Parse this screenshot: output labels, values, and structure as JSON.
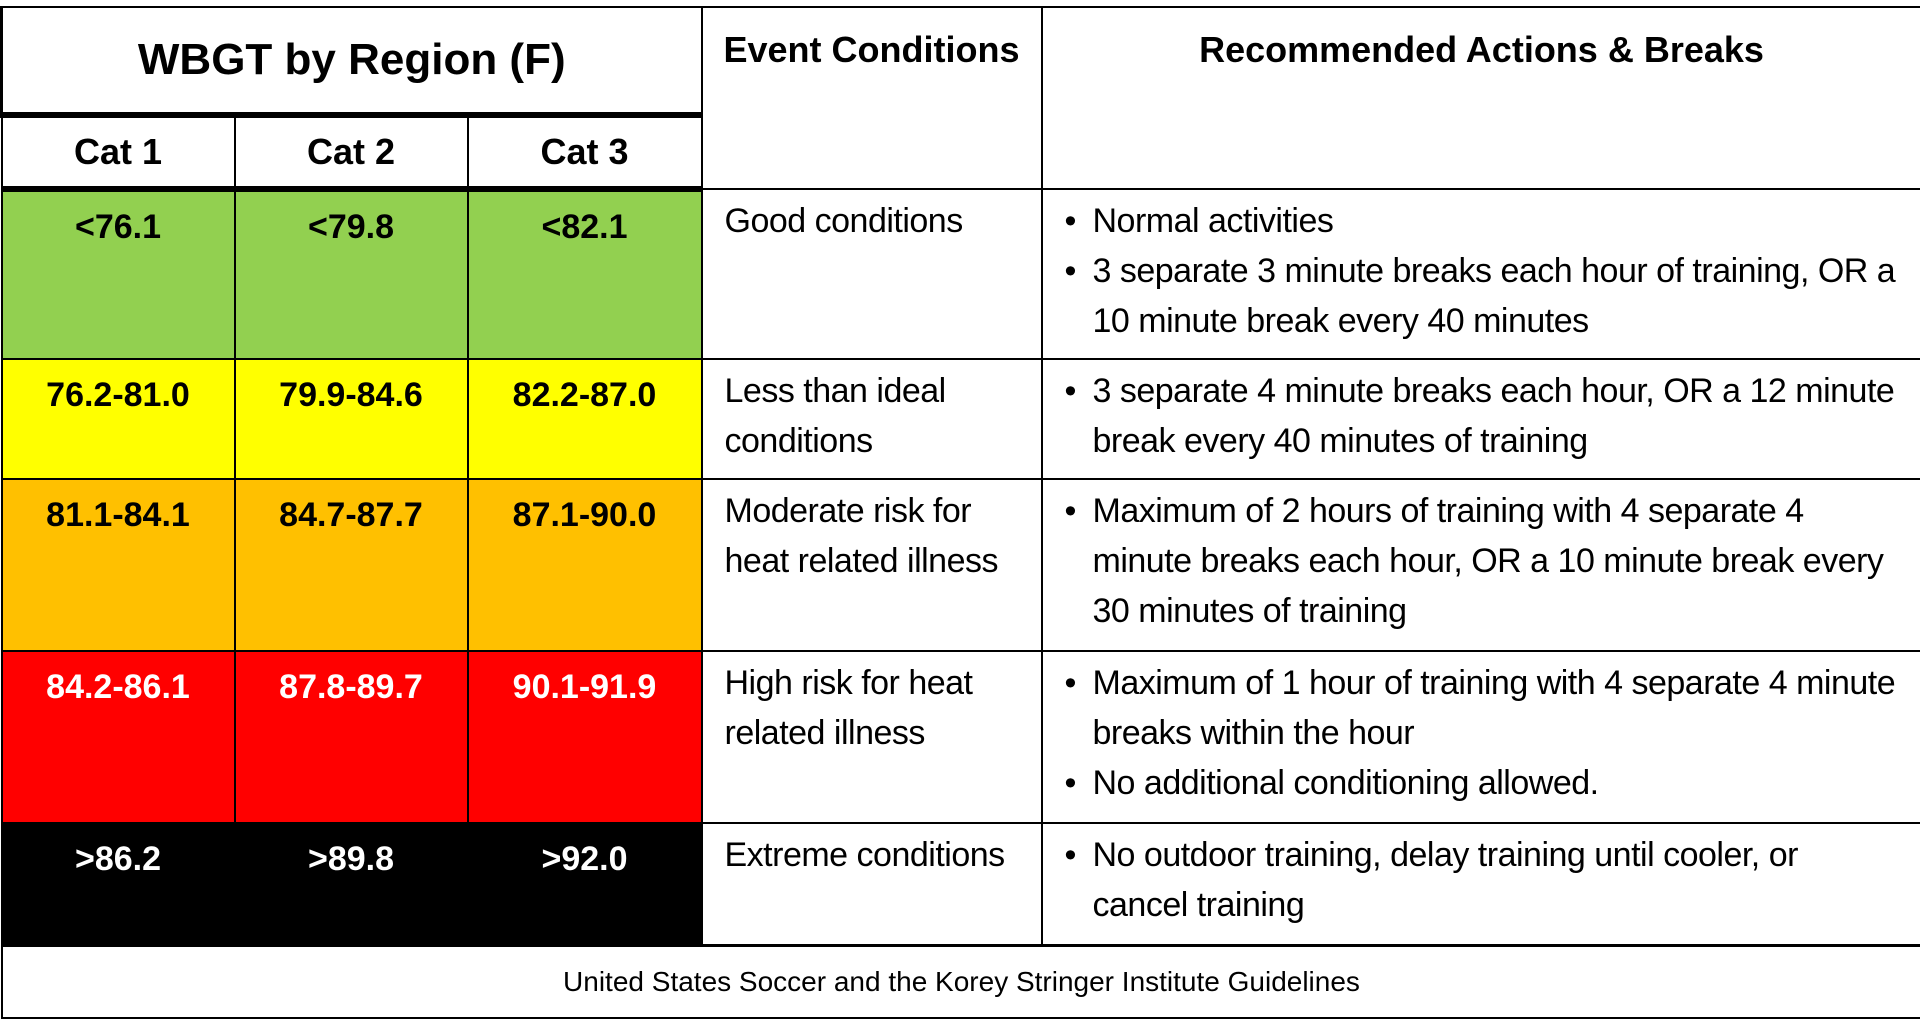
{
  "header": {
    "region_title": "WBGT by Region (F)",
    "event_title": "Event Conditions",
    "actions_title": "Recommended Actions & Breaks",
    "categories": [
      "Cat 1",
      "Cat 2",
      "Cat 3"
    ]
  },
  "rows": [
    {
      "color": "#92D050",
      "text_color": "#000000",
      "values": [
        "<76.1",
        "<79.8",
        "<82.1"
      ],
      "condition": "Good conditions",
      "actions": [
        "Normal activities",
        "3 separate 3 minute breaks each hour of training, OR a 10 minute break every 40 minutes"
      ]
    },
    {
      "color": "#FFFF00",
      "text_color": "#000000",
      "values": [
        "76.2-81.0",
        "79.9-84.6",
        "82.2-87.0"
      ],
      "condition": "Less than ideal conditions",
      "actions": [
        "3 separate 4 minute breaks each hour, OR a 12 minute break every 40 minutes of training"
      ]
    },
    {
      "color": "#FFC000",
      "text_color": "#000000",
      "values": [
        "81.1-84.1",
        "84.7-87.7",
        "87.1-90.0"
      ],
      "condition": "Moderate risk for heat related illness",
      "actions": [
        "Maximum of 2 hours of training with 4 separate 4 minute breaks each hour, OR a 10 minute break every 30 minutes of training"
      ]
    },
    {
      "color": "#FF0000",
      "text_color": "#FFFFFF",
      "values": [
        "84.2-86.1",
        "87.8-89.7",
        "90.1-91.9"
      ],
      "condition": "High risk for heat related illness",
      "actions": [
        "Maximum of 1 hour of training with 4 separate 4 minute breaks within the hour",
        "No additional conditioning allowed."
      ]
    },
    {
      "color": "#000000",
      "text_color": "#FFFFFF",
      "values": [
        ">86.2",
        ">89.8",
        ">92.0"
      ],
      "condition": "Extreme conditions",
      "actions": [
        "No outdoor training, delay training until cooler, or cancel training"
      ]
    }
  ],
  "footer": "United States Soccer and the Korey Stringer Institute Guidelines"
}
